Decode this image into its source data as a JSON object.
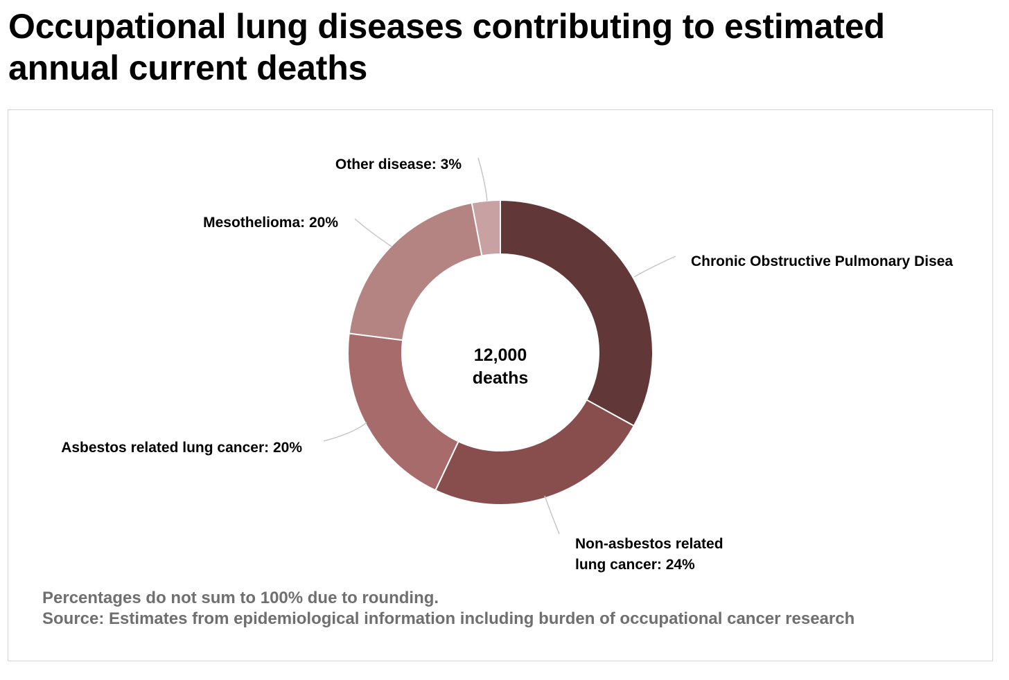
{
  "title": "Occupational lung diseases contributing to estimated annual current deaths",
  "center_label": {
    "line1": "12,000",
    "line2": "deaths"
  },
  "footnote": {
    "note": "Percentages do not sum to 100% due to rounding.",
    "source": "Source: Estimates from epidemiological information including burden of occupational cancer research"
  },
  "chart_data": {
    "type": "pie",
    "variant": "donut",
    "title": "Occupational lung diseases contributing to estimated annual current deaths",
    "total_label": "12,000 deaths",
    "slices": [
      {
        "label": "Chronic Obstructive Pulmonary Disease",
        "display": [
          "Chronic Obstructive Pulmonary Disea"
        ],
        "value": 33,
        "color": "#613737"
      },
      {
        "label": "Non-asbestos related lung cancer",
        "display": [
          "Non-asbestos related",
          "lung cancer: 24%"
        ],
        "value": 24,
        "color": "#874e4d"
      },
      {
        "label": "Asbestos related lung cancer",
        "display": [
          "Asbestos related lung cancer: 20%"
        ],
        "value": 20,
        "color": "#a66b6a"
      },
      {
        "label": "Mesothelioma",
        "display": [
          "Mesothelioma: 20%"
        ],
        "value": 20,
        "color": "#b48482"
      },
      {
        "label": "Other disease",
        "display": [
          "Other disease: 3%"
        ],
        "value": 3,
        "color": "#c8a2a2"
      }
    ],
    "legend": "none"
  }
}
